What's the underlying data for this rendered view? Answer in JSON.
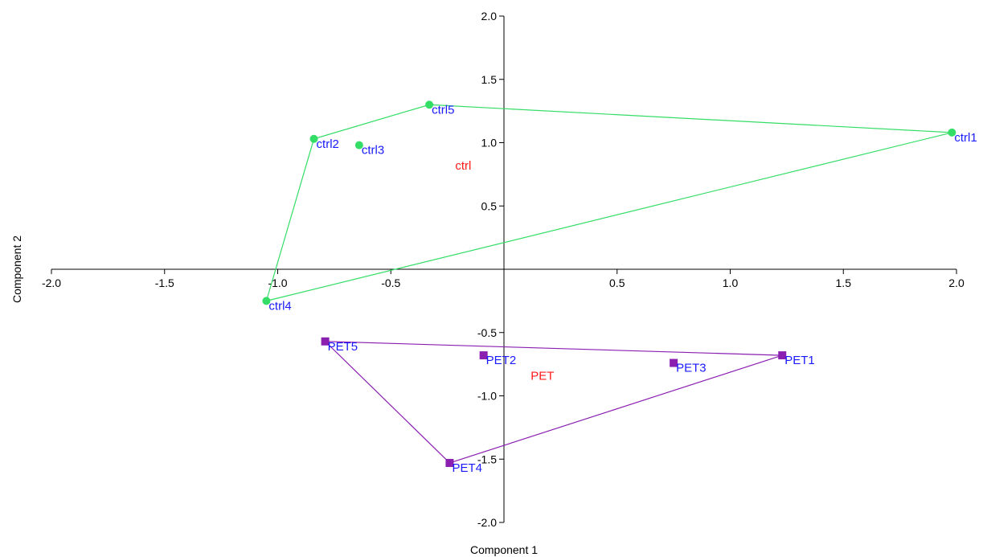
{
  "chart_data": {
    "type": "scatter",
    "xlabel": "Component 1",
    "ylabel": "Component 2",
    "xlim": [
      -2.0,
      2.0
    ],
    "ylim": [
      -2.0,
      2.0
    ],
    "x_ticks": [
      "-2.0",
      "-1.5",
      "-1.0",
      "-0.5",
      "0.5",
      "1.0",
      "1.5",
      "2.0"
    ],
    "y_ticks": [
      "2.0",
      "1.5",
      "1.0",
      "0.5",
      "-0.5",
      "-1.0",
      "-1.5",
      "-2.0"
    ],
    "grid": false,
    "series": [
      {
        "name": "ctrl",
        "marker": "circle",
        "color": "#33dd66",
        "label_color": "#1a1aff",
        "group_label_color": "#ff1a1a",
        "hull_order": [
          "ctrl1",
          "ctrl5",
          "ctrl2",
          "ctrl4"
        ],
        "group_center": [
          -0.18,
          0.82
        ],
        "points": [
          {
            "label": "ctrl1",
            "x": 1.98,
            "y": 1.08
          },
          {
            "label": "ctrl2",
            "x": -0.84,
            "y": 1.03
          },
          {
            "label": "ctrl3",
            "x": -0.64,
            "y": 0.98
          },
          {
            "label": "ctrl4",
            "x": -1.05,
            "y": -0.25
          },
          {
            "label": "ctrl5",
            "x": -0.33,
            "y": 1.3
          }
        ]
      },
      {
        "name": "PET",
        "marker": "square",
        "color": "#8a1fb0",
        "label_color": "#1a1aff",
        "group_label_color": "#ff1a1a",
        "hull_order": [
          "PET1",
          "PET5",
          "PET4"
        ],
        "group_center": [
          0.17,
          -0.84
        ],
        "points": [
          {
            "label": "PET1",
            "x": 1.23,
            "y": -0.68
          },
          {
            "label": "PET2",
            "x": -0.09,
            "y": -0.68
          },
          {
            "label": "PET3",
            "x": 0.75,
            "y": -0.74
          },
          {
            "label": "PET4",
            "x": -0.24,
            "y": -1.53
          },
          {
            "label": "PET5",
            "x": -0.79,
            "y": -0.57
          }
        ]
      }
    ]
  }
}
